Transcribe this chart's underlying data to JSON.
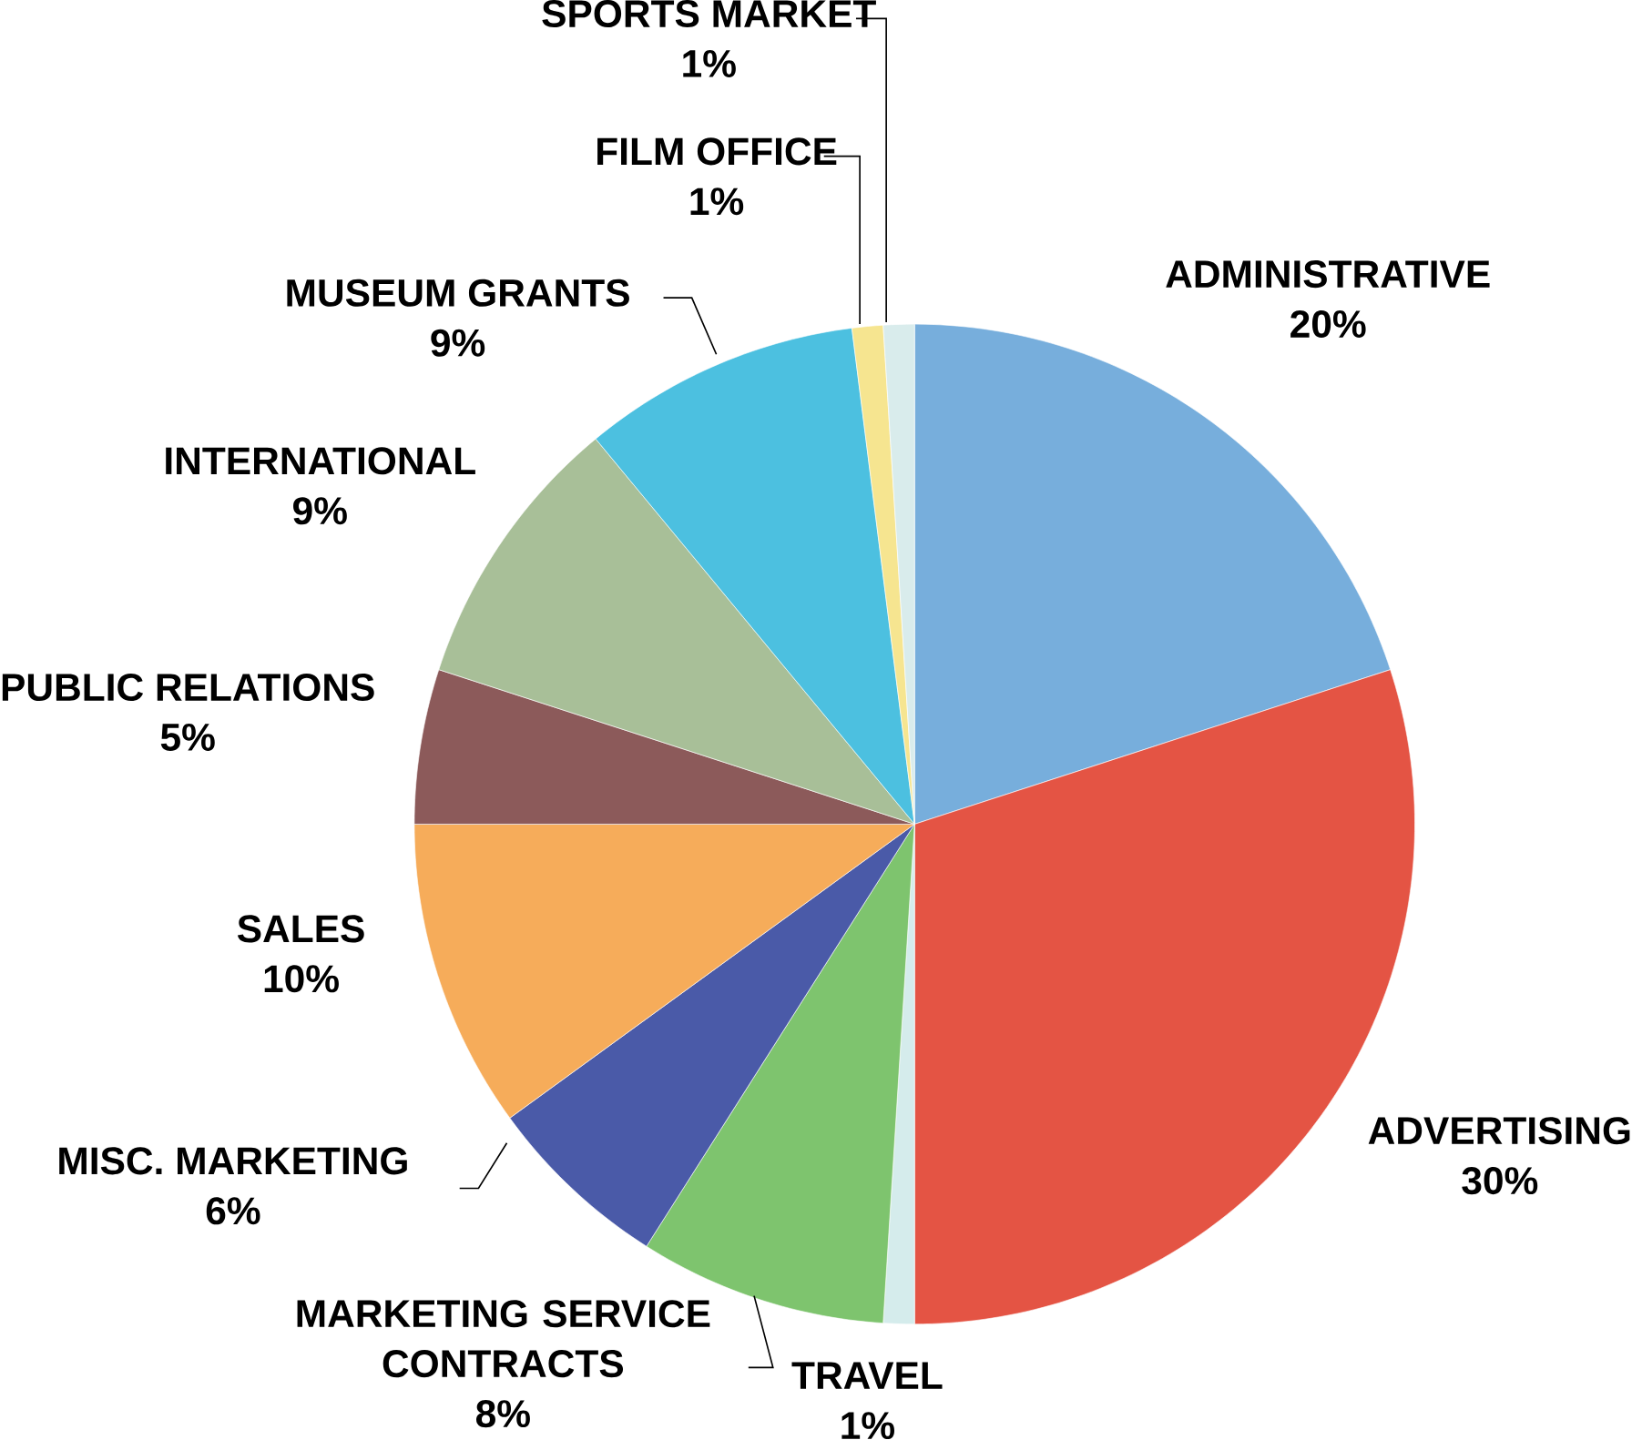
{
  "chart_data": {
    "type": "pie",
    "categories": [
      "ADMINISTRATIVE",
      "ADVERTISING",
      "TRAVEL",
      "MARKETING SERVICE CONTRACTS",
      "MISC. MARKETING",
      "SALES",
      "PUBLIC RELATIONS",
      "INTERNATIONAL",
      "MUSEUM GRANTS",
      "FILM OFFICE",
      "SPORTS MARKET"
    ],
    "values": [
      20,
      30,
      1,
      8,
      6,
      10,
      5,
      9,
      9,
      1,
      1
    ],
    "value_labels": [
      "20%",
      "30%",
      "1%",
      "8%",
      "6%",
      "10%",
      "5%",
      "9%",
      "9%",
      "1%",
      "1%"
    ],
    "colors": [
      "#77aedc",
      "#e45444",
      "#d5ecec",
      "#7ec46e",
      "#4a5aa8",
      "#f6ac5a",
      "#8c5a5a",
      "#a8bf98",
      "#4cc0e0",
      "#f6e590",
      "#d9ecec"
    ]
  }
}
